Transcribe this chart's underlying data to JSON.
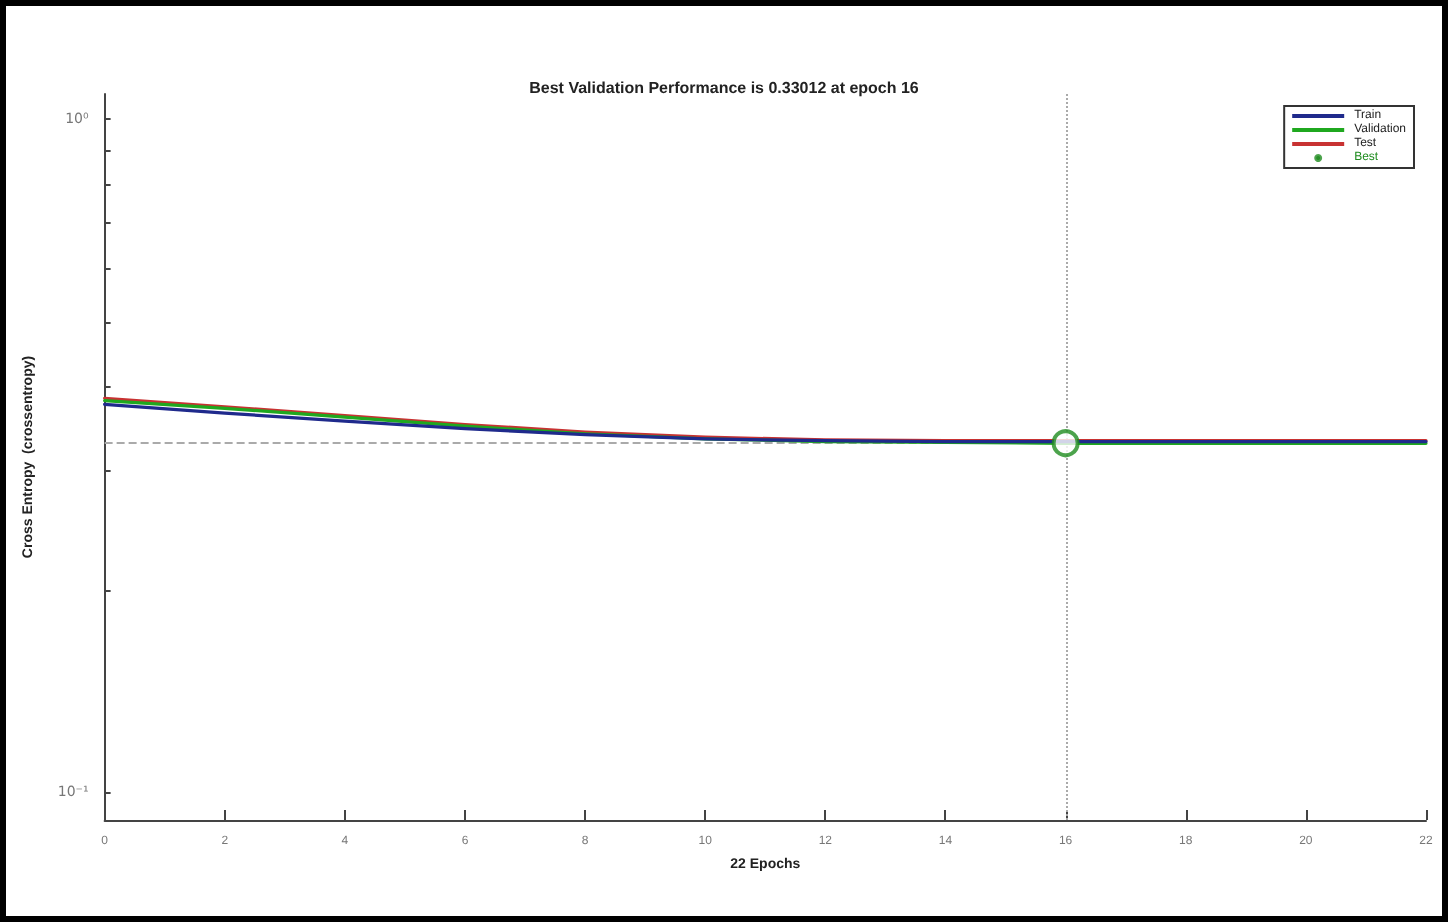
{
  "chart_data": {
    "type": "line",
    "title": "Best Validation Performance is 0.33012 at epoch 16",
    "xlabel": "22 Epochs",
    "ylabel": "Cross Entropy  (crossentropy)",
    "x": [
      0,
      2,
      4,
      6,
      8,
      10,
      12,
      14,
      16,
      18,
      20,
      22
    ],
    "series": [
      {
        "name": "Train",
        "color": "#1f2a8c",
        "values": [
          0.377,
          0.366,
          0.356,
          0.347,
          0.34,
          0.335,
          0.333,
          0.332,
          0.332,
          0.332,
          0.332,
          0.332
        ]
      },
      {
        "name": "Validation",
        "color": "#1fa81f",
        "values": [
          0.382,
          0.372,
          0.361,
          0.35,
          0.341,
          0.335,
          0.332,
          0.331,
          0.33,
          0.33,
          0.33,
          0.33
        ]
      },
      {
        "name": "Test",
        "color": "#c83232",
        "values": [
          0.385,
          0.374,
          0.363,
          0.352,
          0.343,
          0.337,
          0.334,
          0.333,
          0.333,
          0.333,
          0.333,
          0.333
        ]
      },
      {
        "name": "Best",
        "type": "scatter",
        "color": "#1f8c1f",
        "marker": "circle",
        "x": [
          16
        ],
        "values": [
          0.33012
        ]
      }
    ],
    "xlim": [
      0,
      22
    ],
    "xticks": [
      0,
      2,
      4,
      6,
      8,
      10,
      12,
      14,
      16,
      18,
      20,
      22
    ],
    "ylim": [
      0.091,
      1.09
    ],
    "yticks": [
      {
        "value": 0.1,
        "label": "10⁻¹"
      },
      {
        "value": 0.2,
        "label": null
      },
      {
        "value": 0.3,
        "label": null
      },
      {
        "value": 0.4,
        "label": null
      },
      {
        "value": 0.5,
        "label": null
      },
      {
        "value": 0.6,
        "label": null
      },
      {
        "value": 0.7,
        "label": null
      },
      {
        "value": 0.8,
        "label": null
      },
      {
        "value": 0.9,
        "label": null
      },
      {
        "value": 1,
        "label": "10⁰"
      }
    ],
    "log": "y",
    "ref_lines": [
      {
        "axis": "x",
        "value": 16,
        "color": "#aaaaaa",
        "line_style": "dotted"
      },
      {
        "axis": "y",
        "value": 0.33012,
        "color": "#aaaaaa",
        "line_style": "dashed"
      }
    ],
    "legend": "top right",
    "grid": false,
    "marker": "none",
    "line_style": "solid"
  }
}
